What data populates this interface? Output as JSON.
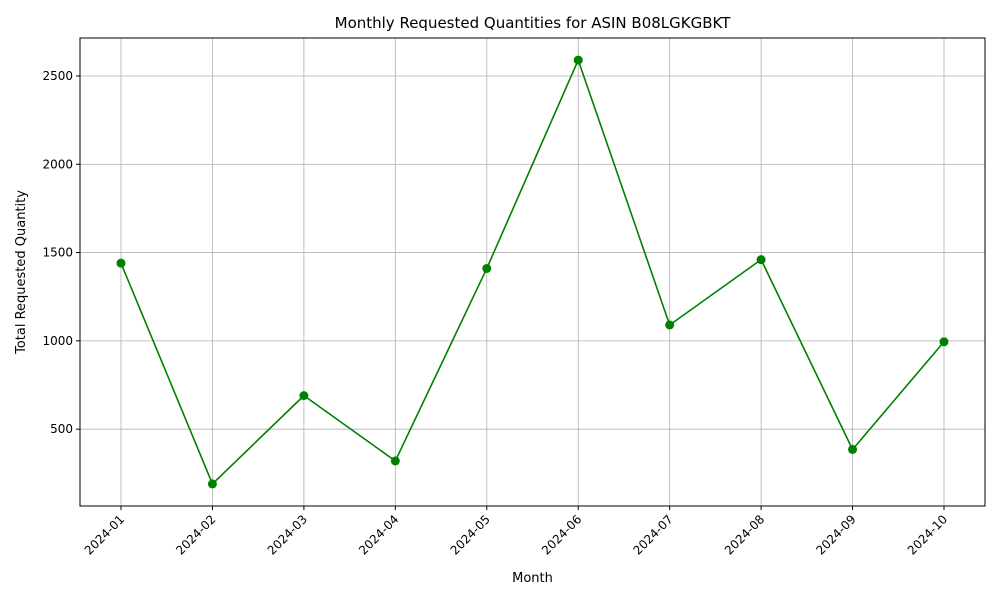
{
  "chart_data": {
    "type": "line",
    "title": "Monthly Requested Quantities for ASIN B08LGKGBKT",
    "xlabel": "Month",
    "ylabel": "Total Requested Quantity",
    "categories": [
      "2024-01",
      "2024-02",
      "2024-03",
      "2024-04",
      "2024-05",
      "2024-06",
      "2024-07",
      "2024-08",
      "2024-09",
      "2024-10"
    ],
    "series": [
      {
        "name": "Requested Quantity",
        "values": [
          1440,
          190,
          690,
          320,
          1410,
          2590,
          1090,
          1460,
          385,
          995
        ],
        "color": "#008000",
        "marker": "circle"
      }
    ],
    "yticks": [
      500,
      1000,
      1500,
      2000,
      2500
    ],
    "ylim": [
      65,
      2715
    ],
    "grid": true,
    "x_tick_rotation_deg": 45
  }
}
